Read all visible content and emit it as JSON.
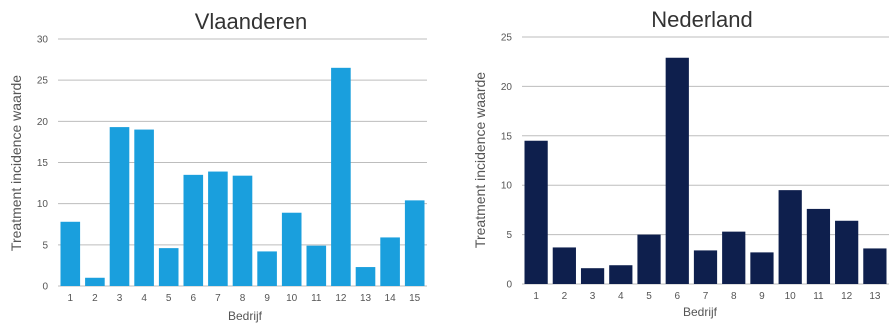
{
  "chart_data": [
    {
      "type": "bar",
      "title": "Vlaanderen",
      "xlabel": "Bedrijf",
      "ylabel": "Treatment incidence waarde",
      "categories": [
        "1",
        "2",
        "3",
        "4",
        "5",
        "6",
        "7",
        "8",
        "9",
        "10",
        "11",
        "12",
        "13",
        "14",
        "15"
      ],
      "values": [
        7.8,
        1.0,
        19.3,
        19.0,
        4.6,
        13.5,
        13.9,
        13.4,
        4.2,
        8.9,
        4.9,
        26.5,
        2.3,
        5.9,
        10.4
      ],
      "ylim": [
        0,
        30
      ],
      "yticks": [
        0,
        5,
        10,
        15,
        20,
        25,
        30
      ],
      "color": "#1a9fdd",
      "grid": true
    },
    {
      "type": "bar",
      "title": "Nederland",
      "xlabel": "Bedrijf",
      "ylabel": "Treatment incidence waarde",
      "categories": [
        "1",
        "2",
        "3",
        "4",
        "5",
        "6",
        "7",
        "8",
        "9",
        "10",
        "11",
        "12",
        "13"
      ],
      "values": [
        14.5,
        3.7,
        1.6,
        1.9,
        5.0,
        22.9,
        3.4,
        5.3,
        3.2,
        9.5,
        7.6,
        6.4,
        3.6
      ],
      "ylim": [
        0,
        25
      ],
      "yticks": [
        0,
        5,
        10,
        15,
        20,
        25
      ],
      "color": "#0e1f4d",
      "grid": true
    }
  ]
}
